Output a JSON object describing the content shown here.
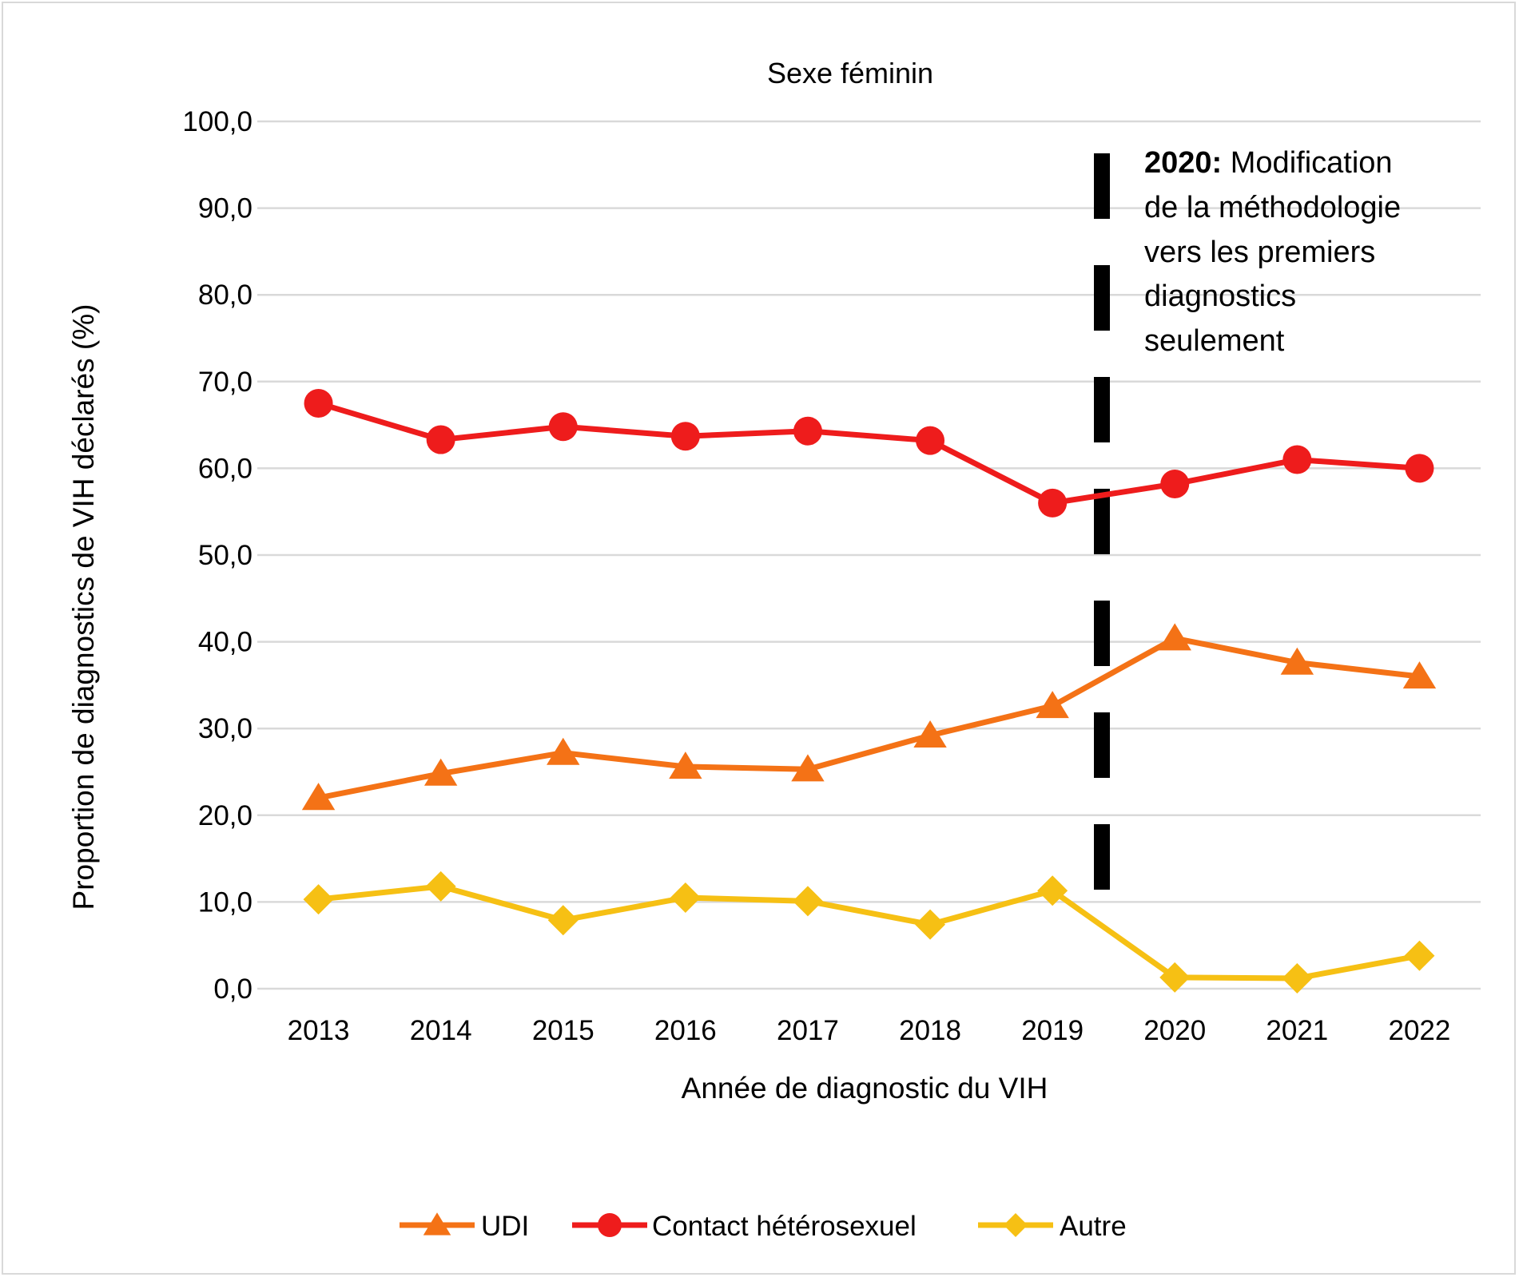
{
  "chart_data": {
    "type": "line",
    "title": "Sexe féminin",
    "xlabel": "Année de diagnostic du VIH",
    "ylabel": "Proportion de diagnostics de VIH déclarés (%)",
    "ylim": [
      0,
      100
    ],
    "y_ticks": [
      "0,0",
      "10,0",
      "20,0",
      "30,0",
      "40,0",
      "50,0",
      "60,0",
      "70,0",
      "80,0",
      "90,0",
      "100,0"
    ],
    "grid": "horizontal",
    "legend_position": "bottom",
    "categories": [
      "2013",
      "2014",
      "2015",
      "2016",
      "2017",
      "2018",
      "2019",
      "2020",
      "2021",
      "2022"
    ],
    "series": [
      {
        "name": "UDI",
        "marker": "triangle",
        "color": "#f47216",
        "values": [
          22.0,
          24.8,
          27.2,
          25.6,
          25.3,
          29.2,
          32.6,
          40.4,
          37.6,
          36.0
        ]
      },
      {
        "name": "Contact hétérosexuel",
        "marker": "circle",
        "color": "#ee1c1c",
        "values": [
          67.5,
          63.3,
          64.8,
          63.7,
          64.3,
          63.2,
          56.0,
          58.2,
          61.0,
          60.0
        ]
      },
      {
        "name": "Autre",
        "marker": "diamond",
        "color": "#f6c014",
        "values": [
          10.3,
          11.8,
          7.9,
          10.5,
          10.1,
          7.4,
          11.3,
          1.3,
          1.2,
          3.8
        ]
      }
    ],
    "annotation": {
      "bold": "2020:",
      "lines": [
        "Modification",
        "de la méthodologie",
        "vers les premiers",
        "diagnostics",
        "seulement"
      ]
    }
  }
}
